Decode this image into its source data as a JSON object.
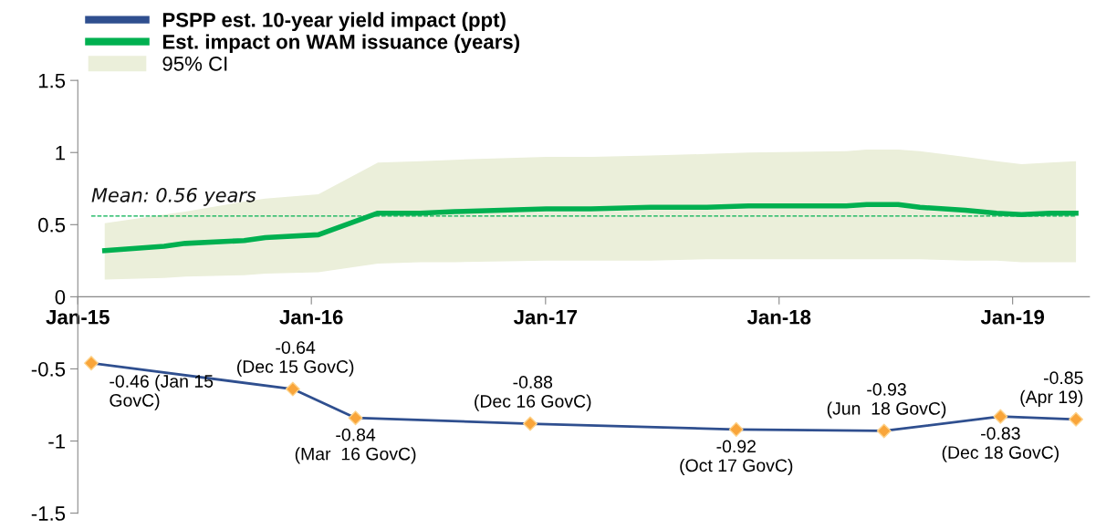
{
  "chart_data": {
    "type": "line",
    "series": [
      {
        "name": "PSPP est. 10-year yield impact (ppt)",
        "color": "#2f4f8f",
        "marker": "diamond",
        "colors": [
          "#f9a53a",
          "#f9a53a",
          "#f9a53a",
          "#f9a53a",
          "#f9a53a",
          "#f9a53a",
          "#f9a53a",
          "#f9a53a"
        ],
        "x": [
          "2015-01-22",
          "2015-12-03",
          "2016-03-10",
          "2016-12-08",
          "2017-10-26",
          "2018-06-14",
          "2018-12-13",
          "2019-04-10"
        ],
        "values": [
          -0.46,
          -0.64,
          -0.84,
          -0.88,
          -0.92,
          -0.93,
          -0.83,
          -0.85
        ],
        "value_labels": [
          "-0.46 (Jan 15\nGovC)",
          "-0.64\n(Dec 15 GovC)",
          "-0.84\n(Mar  16 GovC)",
          "-0.88\n(Dec 16 GovC)",
          "-0.92\n(Oct 17 GovC)",
          "-0.93\n(Jun  18 GovC)",
          "-0.83\n(Dec 18 GovC)",
          "-0.85\n(Apr 19)"
        ]
      },
      {
        "name": "Est. impact on WAM issuance (years)",
        "color": "#00b050",
        "x": [
          "2015-02-12",
          "2015-05-16",
          "2015-06-18",
          "2015-09-18",
          "2015-10-21",
          "2016-01-12",
          "2016-04-14",
          "2016-06-19",
          "2016-08-12",
          "2017-01-02",
          "2017-03-13",
          "2017-06-14",
          "2017-09-10",
          "2017-11-14",
          "2018-04-16",
          "2018-05-18",
          "2018-07-06",
          "2018-08-09",
          "2018-10-19",
          "2018-12-07",
          "2019-01-15",
          "2019-02-28",
          "2019-04-10"
        ],
        "values": [
          0.32,
          0.35,
          0.37,
          0.39,
          0.41,
          0.43,
          0.58,
          0.58,
          0.59,
          0.61,
          0.61,
          0.62,
          0.62,
          0.63,
          0.63,
          0.64,
          0.64,
          0.62,
          0.6,
          0.58,
          0.57,
          0.58,
          0.58
        ],
        "upper": [
          0.51,
          0.57,
          0.59,
          0.66,
          0.68,
          0.71,
          0.93,
          0.94,
          0.95,
          0.97,
          0.97,
          0.98,
          0.99,
          1.0,
          1.01,
          1.02,
          1.02,
          1.01,
          0.97,
          0.94,
          0.92,
          0.93,
          0.94
        ],
        "lower": [
          0.12,
          0.13,
          0.14,
          0.15,
          0.16,
          0.17,
          0.23,
          0.24,
          0.24,
          0.25,
          0.25,
          0.25,
          0.26,
          0.26,
          0.26,
          0.26,
          0.26,
          0.26,
          0.25,
          0.25,
          0.24,
          0.24,
          0.24
        ]
      }
    ],
    "annotations": [
      "95% CI"
    ],
    "ref_lines": [
      {
        "axis": "y",
        "value": 0.56,
        "label": "Mean: 0.56 years",
        "color": "#00b050",
        "line_style": "dashed"
      }
    ],
    "xlim": [
      "2015-01-01",
      "2019-05-01"
    ],
    "xticks": [
      {
        "value": "2015-01-01",
        "label": "Jan-15"
      },
      {
        "value": "2016-01-01",
        "label": "Jan-16"
      },
      {
        "value": "2017-01-01",
        "label": "Jan-17"
      },
      {
        "value": "2018-01-01",
        "label": "Jan-18"
      },
      {
        "value": "2019-01-01",
        "label": "Jan-19"
      }
    ],
    "ylim": [
      -1.5,
      1.5
    ],
    "yticks": [
      -1.5,
      -1,
      -0.5,
      0,
      0.5,
      1,
      1.5
    ],
    "grid": false,
    "legend": "top left"
  }
}
